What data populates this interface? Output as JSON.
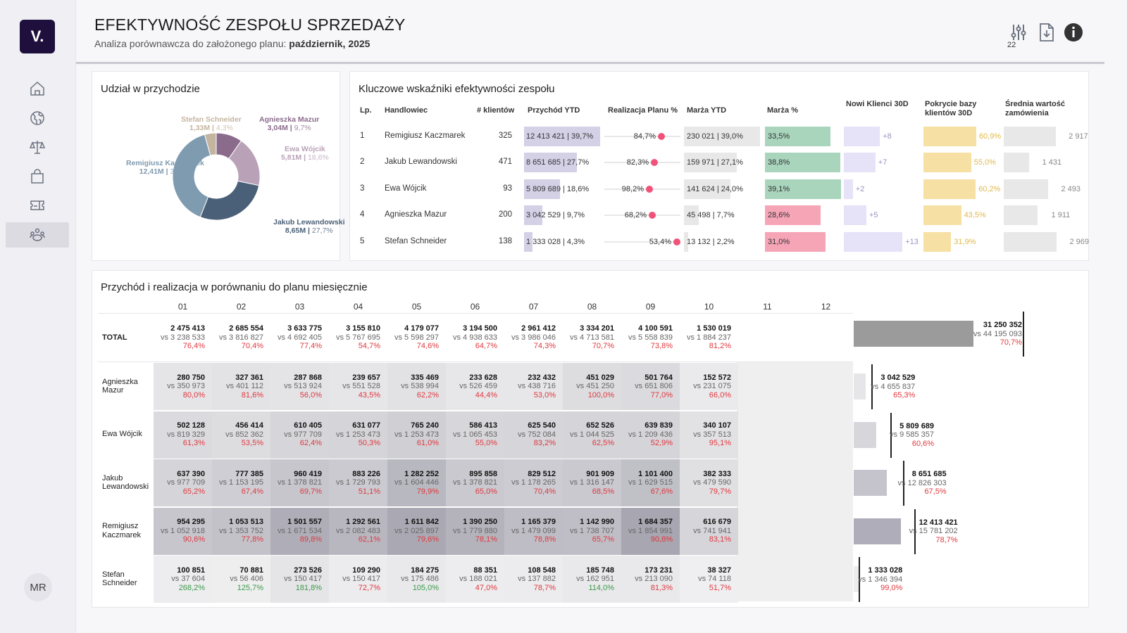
{
  "sidebar": {
    "logo": "V.",
    "items": [
      {
        "icon": "home-icon"
      },
      {
        "icon": "globe-icon"
      },
      {
        "icon": "scale-icon"
      },
      {
        "icon": "shopping-bag-icon"
      },
      {
        "icon": "ticket-icon"
      },
      {
        "icon": "team-icon",
        "active": true
      }
    ],
    "avatar": "MR"
  },
  "header": {
    "title": "EFEKTYWNOŚĆ ZESPOŁU SPRZEDAŻY",
    "subtitle": "Analiza porównawcza do założonego planu: ",
    "period": "październik, 2025",
    "filter_badge": "22",
    "icons": [
      "filter-sliders-icon",
      "download-file-icon",
      "info-icon"
    ]
  },
  "pie": {
    "title": "Udział w przychodzie",
    "slices": [
      {
        "name": "Agnieszka Mazur",
        "value": "3,04M",
        "share": "9,7%",
        "pct": 9.7,
        "color": "#8b6b8c"
      },
      {
        "name": "Ewa Wójcik",
        "value": "5,81M",
        "share": "18,6%",
        "pct": 18.6,
        "color": "#b9a2b7"
      },
      {
        "name": "Jakub Lewandowski",
        "value": "8,65M",
        "share": "27,7%",
        "pct": 27.7,
        "color": "#4a6078"
      },
      {
        "name": "Remigiusz Kaczmarek",
        "value": "12,41M",
        "share": "39,7%",
        "pct": 39.7,
        "color": "#7f9bb0"
      },
      {
        "name": "Stefan Schneider",
        "value": "1,33M",
        "share": "4,3%",
        "pct": 4.3,
        "color": "#c4b5a0"
      }
    ]
  },
  "kpi": {
    "title": "Kluczowe wskaźniki efektywności zespołu",
    "columns": [
      "Lp.",
      "Handlowiec",
      "# klientów",
      "Przychód YTD",
      "Realizacja Planu %",
      "Marża YTD",
      "Marża %",
      "Nowi Klienci 30D",
      "Pokrycie bazy klientów 30D",
      "Średnia wartość zamówienia"
    ],
    "colors": {
      "revenue": "#d4d0e6",
      "margin_ytd": "#e8e8e8",
      "margin_good": "#a9d5bd",
      "margin_bad": "#f6a5b7",
      "new_clients": "#e6e2f8",
      "coverage": "#f6e0a4",
      "avg_order": "#e8e8e8",
      "plan_dot": "#f0527a"
    },
    "rows": [
      {
        "lp": "1",
        "name": "Remigiusz Kaczmarek",
        "clients": "325",
        "revenue": "12 413 421 | 39,7%",
        "revenue_share": 39.7,
        "plan": "84,7%",
        "margin_ytd": "230 021 | 39,0%",
        "margin_share": 39.0,
        "margin_pct": "33,5%",
        "margin_val": 33.5,
        "margin_good": true,
        "new_clients": "+8",
        "new_val": 8,
        "coverage": "60,9%",
        "coverage_val": 60.9,
        "avg_order": "2 917",
        "avg_val": 2917
      },
      {
        "lp": "2",
        "name": "Jakub Lewandowski",
        "clients": "471",
        "revenue": "8 651 685 | 27,7%",
        "revenue_share": 27.7,
        "plan": "82,3%",
        "margin_ytd": "159 971 | 27,1%",
        "margin_share": 27.1,
        "margin_pct": "38,8%",
        "margin_val": 38.8,
        "margin_good": true,
        "new_clients": "+7",
        "new_val": 7,
        "coverage": "55,0%",
        "coverage_val": 55.0,
        "avg_order": "1 431",
        "avg_val": 1431
      },
      {
        "lp": "3",
        "name": "Ewa Wójcik",
        "clients": "93",
        "revenue": "5 809 689 | 18,6%",
        "revenue_share": 18.6,
        "plan": "98,2%",
        "margin_ytd": "141 624 | 24,0%",
        "margin_share": 24.0,
        "margin_pct": "39,1%",
        "margin_val": 39.1,
        "margin_good": true,
        "new_clients": "+2",
        "new_val": 2,
        "coverage": "60,2%",
        "coverage_val": 60.2,
        "avg_order": "2 493",
        "avg_val": 2493
      },
      {
        "lp": "4",
        "name": "Agnieszka Mazur",
        "clients": "200",
        "revenue": "3 042 529 | 9,7%",
        "revenue_share": 9.7,
        "plan": "68,2%",
        "margin_ytd": "45 498 | 7,7%",
        "margin_share": 7.7,
        "margin_pct": "28,6%",
        "margin_val": 28.6,
        "margin_good": false,
        "new_clients": "+5",
        "new_val": 5,
        "coverage": "43,5%",
        "coverage_val": 43.5,
        "avg_order": "1 911",
        "avg_val": 1911
      },
      {
        "lp": "5",
        "name": "Stefan Schneider",
        "clients": "138",
        "revenue": "1 333 028 | 4,3%",
        "revenue_share": 4.3,
        "plan": "53,4%",
        "margin_ytd": "13 132 | 2,2%",
        "margin_share": 2.2,
        "margin_pct": "31,0%",
        "margin_val": 31.0,
        "margin_good": false,
        "new_clients": "+13",
        "new_val": 13,
        "coverage": "31,9%",
        "coverage_val": 31.9,
        "avg_order": "2 969",
        "avg_val": 2969
      }
    ]
  },
  "monthly": {
    "title": "Przychód i realizacja w porównaniu do planu miesięcznie",
    "months": [
      "01",
      "02",
      "03",
      "04",
      "05",
      "06",
      "07",
      "08",
      "09",
      "10",
      "11",
      "12"
    ],
    "pct_colors": {
      "below": "#e0383e",
      "above": "#3a9a4a"
    },
    "total": {
      "label": "TOTAL",
      "cells": [
        [
          "2 475 413",
          "vs 3 238 533",
          "76,4%"
        ],
        [
          "2 685 554",
          "vs 3 816 827",
          "70,4%"
        ],
        [
          "3 633 775",
          "vs 4 692 405",
          "77,4%"
        ],
        [
          "3 155 810",
          "vs 5 767 695",
          "54,7%"
        ],
        [
          "4 179 077",
          "vs 5 598 297",
          "74,6%"
        ],
        [
          "3 194 500",
          "vs 4 938 633",
          "64,7%"
        ],
        [
          "2 961 412",
          "vs 3 986 046",
          "74,3%"
        ],
        [
          "3 334 201",
          "vs 4 713 581",
          "70,7%"
        ],
        [
          "4 100 591",
          "vs 5 558 839",
          "73,8%"
        ],
        [
          "1 530 019",
          "vs 1 884 237",
          "81,2%"
        ]
      ],
      "summary": [
        "31 250 352",
        "vs 44 195 093",
        "70,7%"
      ]
    },
    "rows": [
      {
        "name": "Agnieszka Mazur",
        "cells": [
          [
            "280 750",
            "vs 350 973",
            "80,0%"
          ],
          [
            "327 361",
            "vs 401 112",
            "81,6%"
          ],
          [
            "287 868",
            "vs 513 924",
            "56,0%"
          ],
          [
            "239 657",
            "vs 551 528",
            "43,5%"
          ],
          [
            "335 469",
            "vs 538 994",
            "62,2%"
          ],
          [
            "233 628",
            "vs 526 459",
            "44,4%"
          ],
          [
            "232 432",
            "vs 438 716",
            "53,0%"
          ],
          [
            "451 029",
            "vs 451 250",
            "100,0%"
          ],
          [
            "501 764",
            "vs 651 806",
            "77,0%"
          ],
          [
            "152 572",
            "vs 231 075",
            "66,0%"
          ]
        ],
        "summary": [
          "3 042 529",
          "vs 4 655 837",
          "65,3%"
        ]
      },
      {
        "name": "Ewa Wójcik",
        "cells": [
          [
            "502 128",
            "vs 819 329",
            "61,3%"
          ],
          [
            "456 414",
            "vs 852 362",
            "53,5%"
          ],
          [
            "610 405",
            "vs 977 709",
            "62,4%"
          ],
          [
            "631 077",
            "vs 1 253 473",
            "50,3%"
          ],
          [
            "765 240",
            "vs 1 253 473",
            "61,0%"
          ],
          [
            "586 413",
            "vs 1 065 453",
            "55,0%"
          ],
          [
            "625 540",
            "vs 752 084",
            "83,2%"
          ],
          [
            "652 526",
            "vs 1 044 525",
            "62,5%"
          ],
          [
            "639 839",
            "vs 1 209 436",
            "52,9%"
          ],
          [
            "340 107",
            "vs 357 513",
            "95,1%"
          ]
        ],
        "summary": [
          "5 809 689",
          "vs 9 585 357",
          "60,6%"
        ]
      },
      {
        "name": "Jakub Lewandowski",
        "cells": [
          [
            "637 390",
            "vs 977 709",
            "65,2%"
          ],
          [
            "777 385",
            "vs 1 153 195",
            "67,4%"
          ],
          [
            "960 419",
            "vs 1 378 821",
            "69,7%"
          ],
          [
            "883 226",
            "vs 1 729 793",
            "51,1%"
          ],
          [
            "1 282 252",
            "vs 1 604 446",
            "79,9%"
          ],
          [
            "895 858",
            "vs 1 378 821",
            "65,0%"
          ],
          [
            "829 512",
            "vs 1 178 265",
            "70,4%"
          ],
          [
            "901 909",
            "vs 1 316 147",
            "68,5%"
          ],
          [
            "1 101 400",
            "vs 1 629 515",
            "67,6%"
          ],
          [
            "382 333",
            "vs 479 590",
            "79,7%"
          ]
        ],
        "summary": [
          "8 651 685",
          "vs 12 826 303",
          "67,5%"
        ]
      },
      {
        "name": "Remigiusz Kaczmarek",
        "cells": [
          [
            "954 295",
            "vs 1 052 918",
            "90,6%"
          ],
          [
            "1 053 513",
            "vs 1 353 752",
            "77,8%"
          ],
          [
            "1 501 557",
            "vs 1 671 534",
            "89,8%"
          ],
          [
            "1 292 561",
            "vs 2 082 483",
            "62,1%"
          ],
          [
            "1 611 842",
            "vs 2 025 897",
            "79,6%"
          ],
          [
            "1 390 250",
            "vs 1 779 880",
            "78,1%"
          ],
          [
            "1 165 379",
            "vs 1 479 099",
            "78,8%"
          ],
          [
            "1 142 990",
            "vs 1 738 707",
            "65,7%"
          ],
          [
            "1 684 357",
            "vs 1 854 991",
            "90,8%"
          ],
          [
            "616 679",
            "vs 741 941",
            "83,1%"
          ]
        ],
        "summary": [
          "12 413 421",
          "vs 15 781 202",
          "78,7%"
        ]
      },
      {
        "name": "Stefan Schneider",
        "cells": [
          [
            "100 851",
            "vs 37 604",
            "268,2%"
          ],
          [
            "70 881",
            "vs 56 406",
            "125,7%"
          ],
          [
            "273 526",
            "vs 150 417",
            "181,8%"
          ],
          [
            "109 290",
            "vs 150 417",
            "72,7%"
          ],
          [
            "184 275",
            "vs 175 486",
            "105,0%"
          ],
          [
            "88 351",
            "vs 188 021",
            "47,0%"
          ],
          [
            "108 548",
            "vs 137 882",
            "78,7%"
          ],
          [
            "185 748",
            "vs 162 951",
            "114,0%"
          ],
          [
            "173 231",
            "vs 213 090",
            "81,3%"
          ],
          [
            "38 327",
            "vs 74 118",
            "51,7%"
          ]
        ],
        "summary": [
          "1 333 028",
          "vs 1 346 394",
          "99,0%"
        ]
      }
    ]
  }
}
